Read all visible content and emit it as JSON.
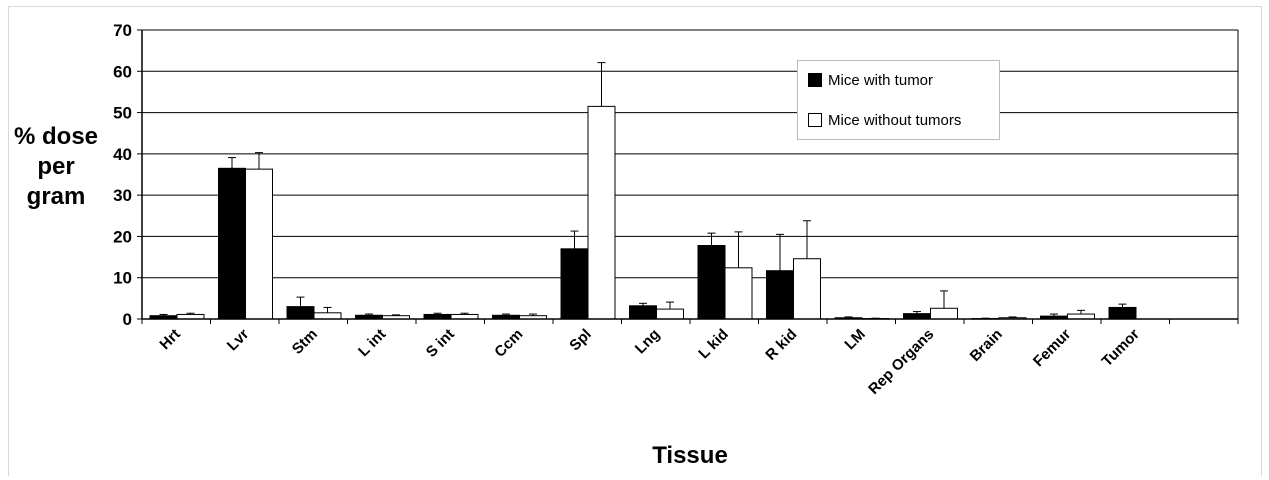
{
  "chart_data": {
    "type": "bar",
    "title": "",
    "xlabel": "Tissue",
    "ylabel_lines": [
      "% dose",
      "per",
      "gram"
    ],
    "ylim": [
      0,
      70
    ],
    "yticks": [
      0,
      10,
      20,
      30,
      40,
      50,
      60,
      70
    ],
    "grid": true,
    "legend_position": "top-right",
    "categories": [
      "Hrt",
      "Lvr",
      "Stm",
      "L int",
      "S int",
      "Ccm",
      "Spl",
      "Lng",
      "L kid",
      "R kid",
      "LM",
      "Rep Organs",
      "Brain",
      "Femur",
      "Tumor"
    ],
    "series": [
      {
        "name": "Mice with tumor",
        "color": "#000000",
        "values": [
          0.8,
          36.5,
          3.0,
          0.9,
          1.1,
          0.9,
          17.0,
          3.2,
          17.8,
          11.7,
          0.3,
          1.3,
          0.1,
          0.7,
          2.8
        ],
        "errors": [
          0.3,
          2.6,
          2.3,
          0.3,
          0.3,
          0.3,
          4.3,
          0.6,
          3.0,
          8.8,
          0.2,
          0.5,
          0.1,
          0.5,
          0.8
        ]
      },
      {
        "name": "Mice without tumors",
        "color": "#ffffff",
        "values": [
          1.1,
          36.3,
          1.5,
          0.8,
          1.1,
          0.8,
          51.5,
          2.4,
          12.4,
          14.6,
          0.1,
          2.6,
          0.3,
          1.2,
          0
        ],
        "errors": [
          0.3,
          4.0,
          1.3,
          0.2,
          0.3,
          0.4,
          10.6,
          1.7,
          8.7,
          9.2,
          0.1,
          4.2,
          0.2,
          0.9,
          0
        ]
      }
    ]
  }
}
